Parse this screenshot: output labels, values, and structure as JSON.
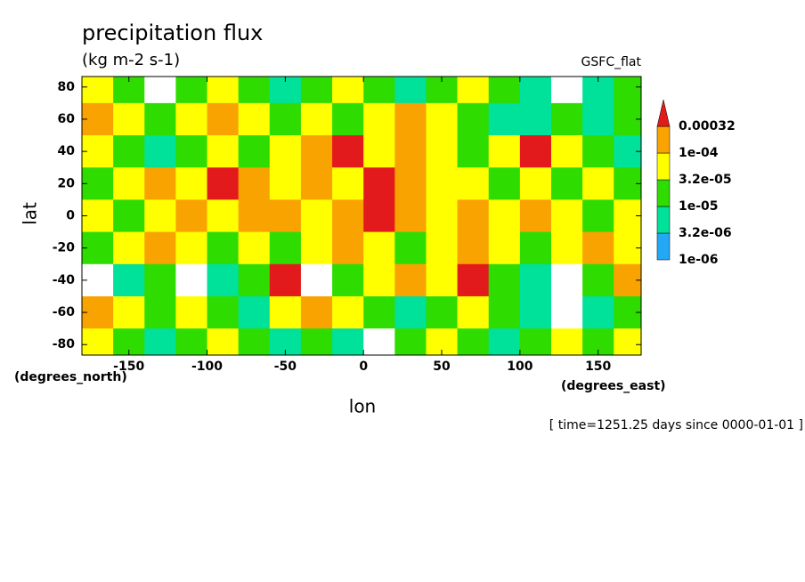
{
  "chart_data": {
    "type": "contour",
    "title": "precipitation flux",
    "subtitle": "(kg m-2 s-1)",
    "annotation": "GSFC_flat",
    "footnote": "[ time=1251.25 days since 0000-01-01 ]",
    "xlabel": "lon",
    "ylabel": "lat",
    "xunits": "(degrees_east)",
    "yunits": "(degrees_north)",
    "xlim": [
      -180,
      177.5
    ],
    "ylim": [
      -86.5,
      86.5
    ],
    "xticks": [
      -150,
      -100,
      -50,
      0,
      50,
      100,
      150
    ],
    "yticks": [
      -80,
      -60,
      -40,
      -20,
      0,
      20,
      40,
      60,
      80
    ],
    "levels": [
      {
        "value": 1e-06,
        "label": "1e-06"
      },
      {
        "value": 3.2e-06,
        "label": "3.2e-06"
      },
      {
        "value": 1e-05,
        "label": "1e-05"
      },
      {
        "value": 3.2e-05,
        "label": "3.2e-05"
      },
      {
        "value": 0.0001,
        "label": "1e-04"
      },
      0.00032
    ],
    "colors": [
      "#ffffff",
      "#23a8f5",
      "#00e19a",
      "#2fdc00",
      "#ffff00",
      "#f9a300",
      "#e31a1c"
    ],
    "x": [
      -170,
      -150,
      -130,
      -110,
      -90,
      -70,
      -50,
      -30,
      -10,
      10,
      30,
      50,
      70,
      90,
      110,
      130,
      150,
      170
    ],
    "y": [
      80,
      60,
      40,
      20,
      0,
      -20,
      -40,
      -60,
      -80
    ],
    "z": [
      [
        5e-05,
        2e-05,
        5e-07,
        2e-05,
        5e-05,
        2e-05,
        5e-06,
        2e-05,
        5e-05,
        2e-05,
        5e-06,
        2e-05,
        5e-05,
        2e-05,
        5e-06,
        5e-07,
        5e-06,
        2e-05
      ],
      [
        0.00015,
        5e-05,
        2e-05,
        5e-05,
        0.00015,
        5e-05,
        2e-05,
        5e-05,
        2e-05,
        5e-05,
        0.00015,
        5e-05,
        2e-05,
        5e-06,
        5e-06,
        2e-05,
        5e-06,
        2e-05
      ],
      [
        5e-05,
        2e-05,
        5e-06,
        2e-05,
        5e-05,
        2e-05,
        5e-05,
        0.00015,
        0.0004,
        5e-05,
        0.00015,
        5e-05,
        2e-05,
        5e-05,
        0.0004,
        5e-05,
        2e-05,
        5e-06
      ],
      [
        2e-05,
        5e-05,
        0.00015,
        5e-05,
        0.0004,
        0.00015,
        5e-05,
        0.00015,
        5e-05,
        0.0004,
        0.00015,
        5e-05,
        5e-05,
        2e-05,
        5e-05,
        2e-05,
        5e-05,
        2e-05
      ],
      [
        5e-05,
        2e-05,
        5e-05,
        0.00015,
        5e-05,
        0.00015,
        0.00015,
        5e-05,
        0.00015,
        0.0004,
        0.00015,
        5e-05,
        0.00015,
        5e-05,
        0.00015,
        5e-05,
        2e-05,
        5e-05
      ],
      [
        2e-05,
        5e-05,
        0.00015,
        5e-05,
        2e-05,
        5e-05,
        2e-05,
        5e-05,
        0.00015,
        5e-05,
        2e-05,
        5e-05,
        0.00015,
        5e-05,
        2e-05,
        5e-05,
        0.00015,
        5e-05
      ],
      [
        5e-07,
        5e-06,
        2e-05,
        5e-07,
        5e-06,
        2e-05,
        0.0004,
        5e-07,
        2e-05,
        5e-05,
        0.00015,
        5e-05,
        0.0004,
        2e-05,
        5e-06,
        5e-07,
        2e-05,
        0.00015
      ],
      [
        0.00015,
        5e-05,
        2e-05,
        5e-05,
        2e-05,
        5e-06,
        5e-05,
        0.00015,
        5e-05,
        2e-05,
        5e-06,
        2e-05,
        5e-05,
        2e-05,
        5e-06,
        5e-07,
        5e-06,
        2e-05
      ],
      [
        5e-05,
        2e-05,
        5e-06,
        2e-05,
        5e-05,
        2e-05,
        5e-06,
        2e-05,
        5e-06,
        5e-07,
        2e-05,
        5e-05,
        2e-05,
        5e-06,
        2e-05,
        5e-05,
        2e-05,
        5e-05
      ]
    ]
  }
}
